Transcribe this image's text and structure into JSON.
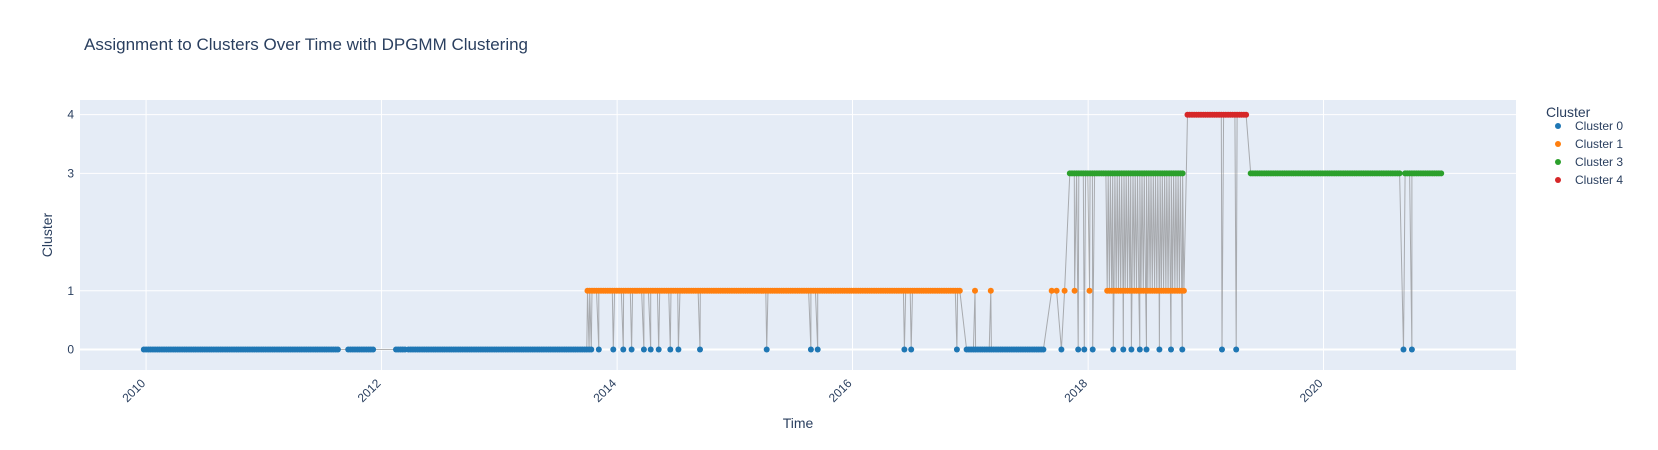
{
  "chart_data": {
    "type": "scatter",
    "title": "Assignment to Clusters Over Time with DPGMM Clustering",
    "xlabel": "Time",
    "ylabel": "Cluster",
    "xlim": [
      "2009-06-10",
      "2021-08-20"
    ],
    "ylim": [
      -0.35,
      4.25
    ],
    "x_ticks": [
      "2010",
      "2012",
      "2014",
      "2016",
      "2018",
      "2020"
    ],
    "y_ticks": [
      0,
      1,
      3,
      4
    ],
    "grid": true,
    "legend": {
      "title": "Cluster",
      "placement": "right",
      "items": [
        {
          "label": "Cluster 0",
          "color": "#1f77b4"
        },
        {
          "label": "Cluster 1",
          "color": "#ff7f0e"
        },
        {
          "label": "Cluster 3",
          "color": "#2ca02c"
        },
        {
          "label": "Cluster 4",
          "color": "#d62728"
        }
      ]
    },
    "line_color": "#7f7f7f",
    "series": [
      {
        "name": "Cluster 0",
        "color": "#1f77b4",
        "y": 0,
        "ranges": [
          [
            "2009-12-25",
            "2011-08-20"
          ],
          [
            "2011-09-20",
            "2011-12-10"
          ],
          [
            "2012-02-15",
            "2012-03-20"
          ],
          [
            "2012-03-25",
            "2013-10-15"
          ],
          [
            "2016-12-20",
            "2017-08-20"
          ]
        ],
        "points": [
          "2013-11-05",
          "2013-12-20",
          "2014-01-20",
          "2014-02-15",
          "2014-03-25",
          "2014-04-15",
          "2014-05-10",
          "2014-06-15",
          "2014-07-10",
          "2014-09-15",
          "2015-04-10",
          "2015-08-25",
          "2015-09-15",
          "2016-06-10",
          "2016-07-01",
          "2016-11-20",
          "2017-10-10",
          "2017-12-01",
          "2017-12-20",
          "2018-01-15",
          "2018-03-20",
          "2018-04-20",
          "2018-05-15",
          "2018-06-10",
          "2018-07-01",
          "2018-08-10",
          "2018-09-15",
          "2018-10-20",
          "2019-02-20",
          "2019-04-05",
          "2020-09-05",
          "2020-10-01"
        ]
      },
      {
        "name": "Cluster 1",
        "color": "#ff7f0e",
        "y": 1,
        "ranges": [
          [
            "2013-10-01",
            "2016-12-05"
          ],
          [
            "2018-03-01",
            "2018-10-25"
          ]
        ],
        "points": [
          "2017-01-15",
          "2017-03-05",
          "2017-09-10",
          "2017-09-25",
          "2017-10-20",
          "2017-11-20",
          "2018-01-05"
        ]
      },
      {
        "name": "Cluster 3",
        "color": "#2ca02c",
        "y": 3,
        "ranges": [
          [
            "2017-11-05",
            "2018-10-25"
          ],
          [
            "2019-05-20",
            "2020-08-25"
          ],
          [
            "2020-09-10",
            "2021-01-05"
          ]
        ],
        "points": []
      },
      {
        "name": "Cluster 4",
        "color": "#d62728",
        "y": 4,
        "ranges": [
          [
            "2018-11-05",
            "2019-05-10"
          ]
        ],
        "points": []
      }
    ]
  }
}
